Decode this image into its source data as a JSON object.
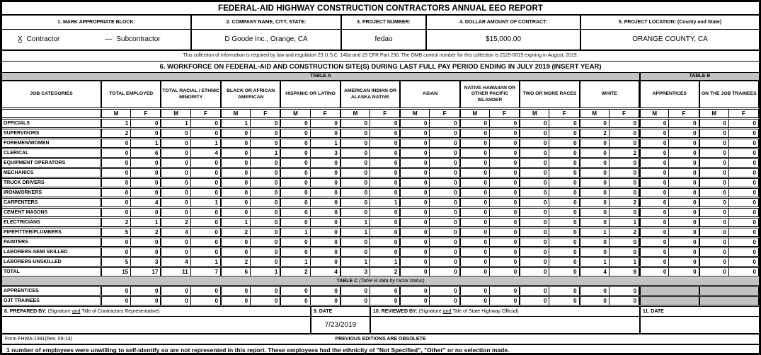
{
  "title": "FEDERAL-AID HIGHWAY CONSTRUCTION CONTRACTORS ANNUAL EEO REPORT",
  "colors": {
    "header_bar_gray": "#c3c3c3",
    "border": "#000000"
  },
  "header_fields": {
    "f1_label": "1. MARK APPROPRIATE BLOCK:",
    "f2_label": "2. COMPANY NAME, CITY, STATE:",
    "f2_value": "D Goode Inc., Orange, CA",
    "f3_label": "3. PROJECT NUMBER:",
    "f3_value": "fedao",
    "f4_label": "4. DOLLAR AMOUNT OF CONTRACT:",
    "f4_value": "$15,000.00",
    "f5_label": "5. PROJECT LOCATION: (County and State)",
    "f5_value": "ORANGE COUNTY, CA"
  },
  "mark_block": {
    "contractor_mark": "X",
    "contractor_label": "Contractor",
    "subcontractor_mark": "—",
    "subcontractor_label": "Subcontractor"
  },
  "omb_note": "This collection of information is required by law and regulation 23 U.S.C. 140a and 23 CFR Part 230.  The OMB control number for this collection is 2125-0019 expiring in August, 2019.",
  "section6_title": "6. WORKFORCE ON FEDERAL-AID AND CONSTRUCTION SITE(S) DURING LAST FULL PAY PERIOD ENDING IN JULY 2019 (INSERT YEAR)",
  "table_labels": {
    "a": "TABLE A",
    "b": "TABLE B",
    "c_bold": "TABLE C",
    "c_italic": " (Table B data by racial status)"
  },
  "columns": {
    "job_header": "JOB CATEGORIES",
    "groups": [
      "TOTAL EMPLOYED",
      "TOTAL RACIAL / ETHNIC MINORITY",
      "BLACK OR AFRICAN AMERICAN",
      "HISPANIC OR LATINO",
      "AMERICAN INDIAN OR ALASKA NATIVE",
      "ASIAN",
      "NATIVE HAWAIIAN OR OTHER PACIFIC ISLANDER",
      "TWO OR MORE RACES",
      "WHITE",
      "APPRENTICES",
      "ON THE JOB TRAINEES"
    ],
    "mf": [
      "M",
      "F"
    ]
  },
  "rows": [
    {
      "label": "OFFICIALS",
      "values": [
        1,
        0,
        1,
        0,
        1,
        0,
        0,
        0,
        0,
        0,
        0,
        0,
        0,
        0,
        0,
        0,
        0,
        0,
        0,
        0,
        0,
        0
      ]
    },
    {
      "label": "SUPERVISORS",
      "values": [
        2,
        0,
        0,
        0,
        0,
        0,
        0,
        0,
        0,
        0,
        0,
        0,
        0,
        0,
        0,
        0,
        2,
        0,
        0,
        0,
        0,
        0
      ]
    },
    {
      "label": "FOREMEN/WOMEN",
      "values": [
        0,
        1,
        0,
        1,
        0,
        0,
        0,
        1,
        0,
        0,
        0,
        0,
        0,
        0,
        0,
        0,
        0,
        0,
        0,
        0,
        0,
        0
      ]
    },
    {
      "label": "CLERICAL",
      "values": [
        0,
        6,
        0,
        4,
        0,
        1,
        0,
        3,
        0,
        0,
        0,
        0,
        0,
        0,
        0,
        0,
        0,
        2,
        0,
        0,
        0,
        0
      ]
    },
    {
      "label": "EQUIPMENT OPERATORS",
      "values": [
        0,
        0,
        0,
        0,
        0,
        0,
        0,
        0,
        0,
        0,
        0,
        0,
        0,
        0,
        0,
        0,
        0,
        0,
        0,
        0,
        0,
        0
      ]
    },
    {
      "label": "MECHANICS",
      "values": [
        0,
        0,
        0,
        0,
        0,
        0,
        0,
        0,
        0,
        0,
        0,
        0,
        0,
        0,
        0,
        0,
        0,
        0,
        0,
        0,
        0,
        0
      ]
    },
    {
      "label": "TRUCK DRIVERS",
      "values": [
        0,
        0,
        0,
        0,
        0,
        0,
        0,
        0,
        0,
        0,
        0,
        0,
        0,
        0,
        0,
        0,
        0,
        0,
        0,
        0,
        0,
        0
      ]
    },
    {
      "label": "IRONWORKERS",
      "values": [
        0,
        0,
        0,
        0,
        0,
        0,
        0,
        0,
        0,
        0,
        0,
        0,
        0,
        0,
        0,
        0,
        0,
        0,
        0,
        0,
        0,
        0
      ]
    },
    {
      "label": "CARPENTERS",
      "values": [
        0,
        4,
        0,
        1,
        0,
        0,
        0,
        0,
        0,
        1,
        0,
        0,
        0,
        0,
        0,
        0,
        0,
        2,
        0,
        0,
        0,
        0
      ]
    },
    {
      "label": "CEMENT MASONS",
      "values": [
        0,
        0,
        0,
        0,
        0,
        0,
        0,
        0,
        0,
        0,
        0,
        0,
        0,
        0,
        0,
        0,
        0,
        0,
        0,
        0,
        0,
        0
      ]
    },
    {
      "label": "ELECTRICIANS",
      "values": [
        2,
        1,
        2,
        0,
        1,
        0,
        0,
        0,
        1,
        0,
        0,
        0,
        0,
        0,
        0,
        0,
        0,
        1,
        0,
        0,
        0,
        0
      ]
    },
    {
      "label": "PIPEFITTER/PLUMBERS",
      "values": [
        5,
        2,
        4,
        0,
        2,
        0,
        1,
        0,
        1,
        0,
        0,
        0,
        0,
        0,
        0,
        0,
        1,
        2,
        0,
        0,
        0,
        0
      ]
    },
    {
      "label": "PAINTERS",
      "values": [
        0,
        0,
        0,
        0,
        0,
        0,
        0,
        0,
        0,
        0,
        0,
        0,
        0,
        0,
        0,
        0,
        0,
        0,
        0,
        0,
        0,
        0
      ]
    },
    {
      "label": "LABORERS-SEMI SKILLED",
      "values": [
        0,
        0,
        0,
        0,
        0,
        0,
        0,
        0,
        0,
        0,
        0,
        0,
        0,
        0,
        0,
        0,
        0,
        0,
        0,
        0,
        0,
        0
      ]
    },
    {
      "label": "LABORERS-UNSKILLED",
      "values": [
        5,
        3,
        4,
        1,
        2,
        0,
        1,
        0,
        1,
        1,
        0,
        0,
        0,
        0,
        0,
        0,
        1,
        1,
        0,
        0,
        0,
        0
      ]
    },
    {
      "label": "TOTAL",
      "values": [
        15,
        17,
        11,
        7,
        6,
        1,
        2,
        4,
        3,
        2,
        0,
        0,
        0,
        0,
        0,
        0,
        4,
        8,
        0,
        0,
        0,
        0
      ]
    }
  ],
  "table_c_rows": [
    {
      "label": "APPRENTICES",
      "values": [
        0,
        0,
        0,
        0,
        0,
        0,
        0,
        0,
        0,
        0,
        0,
        0,
        0,
        0,
        0,
        0,
        0,
        0
      ]
    },
    {
      "label": "OJT TRAINEES",
      "values": [
        0,
        0,
        0,
        0,
        0,
        0,
        0,
        0,
        0,
        0,
        0,
        0,
        0,
        0,
        0,
        0,
        0,
        0
      ]
    }
  ],
  "signature": {
    "prepared_label": "8. PREPARED BY:",
    "prepared_sub_pre": " (Signature ",
    "prepared_sub_and": "and",
    "prepared_sub_post": " Title of Contractors Representative)",
    "date9_label": "9. DATE",
    "date9_value": "7/23/2019",
    "reviewed_label": "10. REVIEWED BY:",
    "reviewed_sub_pre": "  (Signature ",
    "reviewed_sub_and": "and",
    "reviewed_sub_post": " Title of State Highway Official)",
    "date11_label": "11. DATE",
    "date11_value": ""
  },
  "footer": {
    "form_id": "Form FHWA-1391(Rev. 09-13)",
    "obsolete_note": "PREVIOUS EDITIONS ARE OBSOLETE"
  },
  "footnote": {
    "count": "1",
    "text": " number of employees were unwilling to self-identify so are not represented in this report. These employees had the ethnicity of \"Not Specified\", \"Other\" or no selection made."
  }
}
